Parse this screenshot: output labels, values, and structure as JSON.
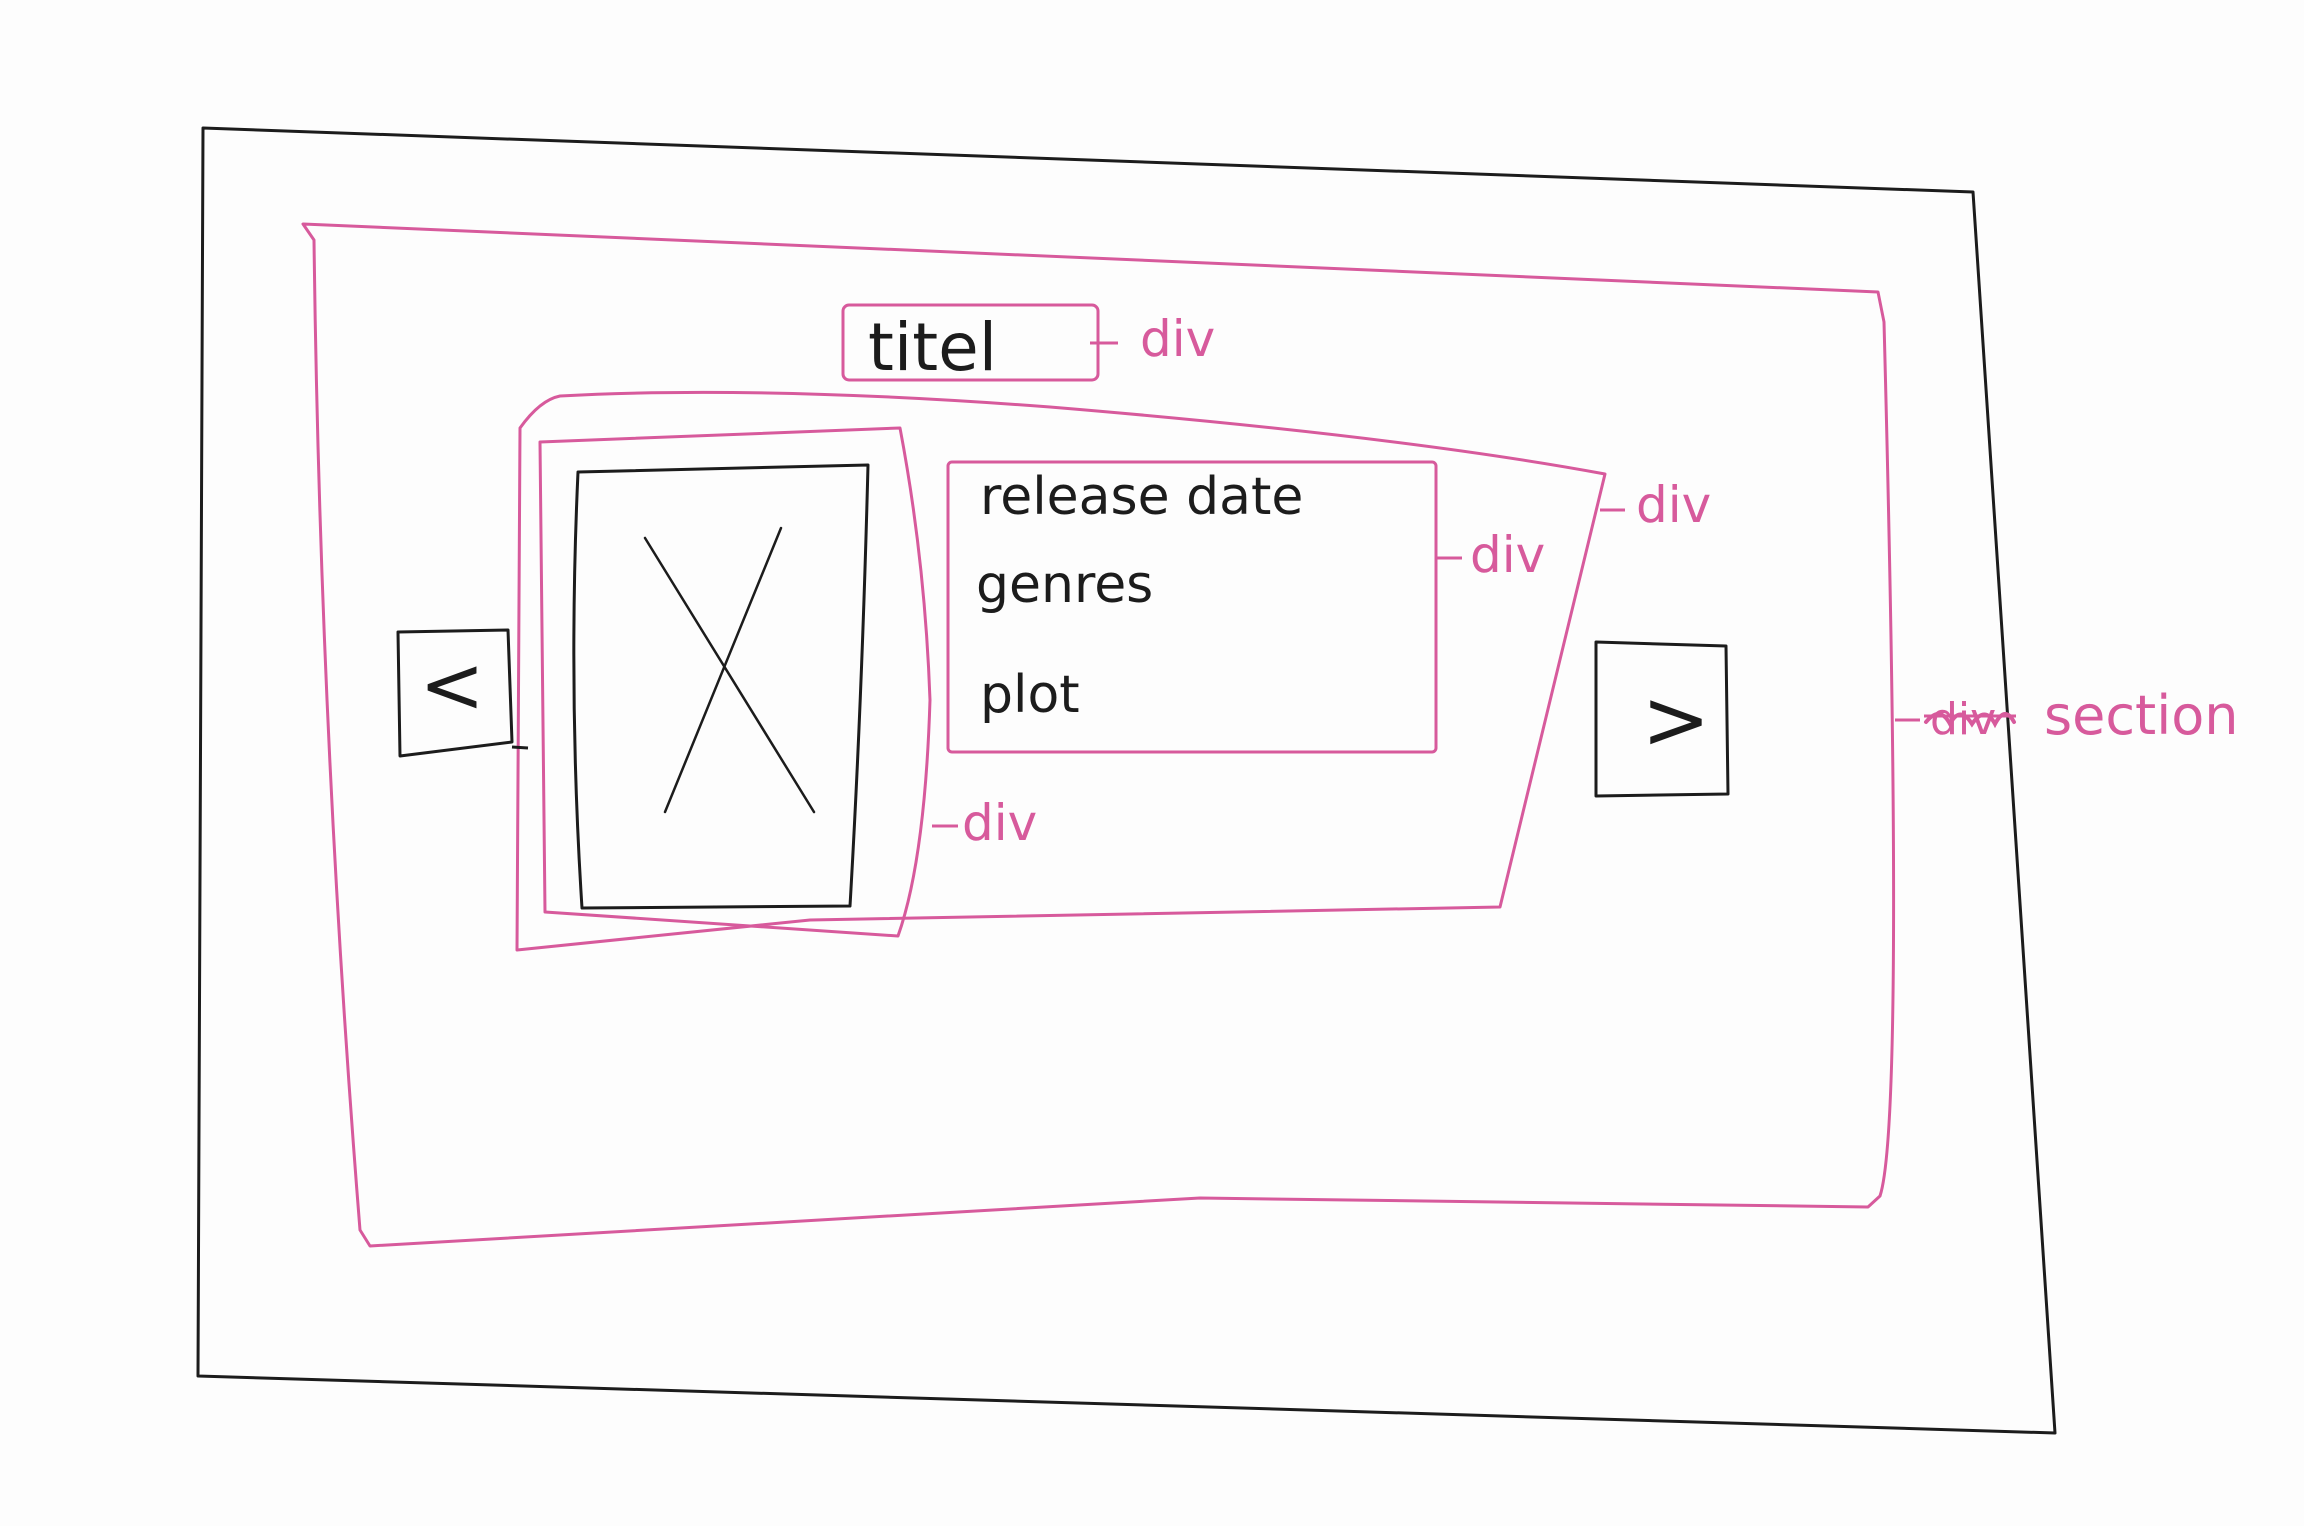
{
  "colors": {
    "ink": "#1c1c1c",
    "marker": "#d75a9c",
    "paper": "#fdfdfd"
  },
  "wireframe": {
    "title_text": "titel",
    "info_lines": [
      "release date",
      "genres",
      "plot"
    ],
    "prev_arrow": "<",
    "next_arrow": ">",
    "image_placeholder": "image-placeholder-icon"
  },
  "annotations": {
    "title_div": "div",
    "info_div": "div",
    "content_div": "div",
    "poster_div": "div",
    "section_strike": "div",
    "section": "section"
  }
}
